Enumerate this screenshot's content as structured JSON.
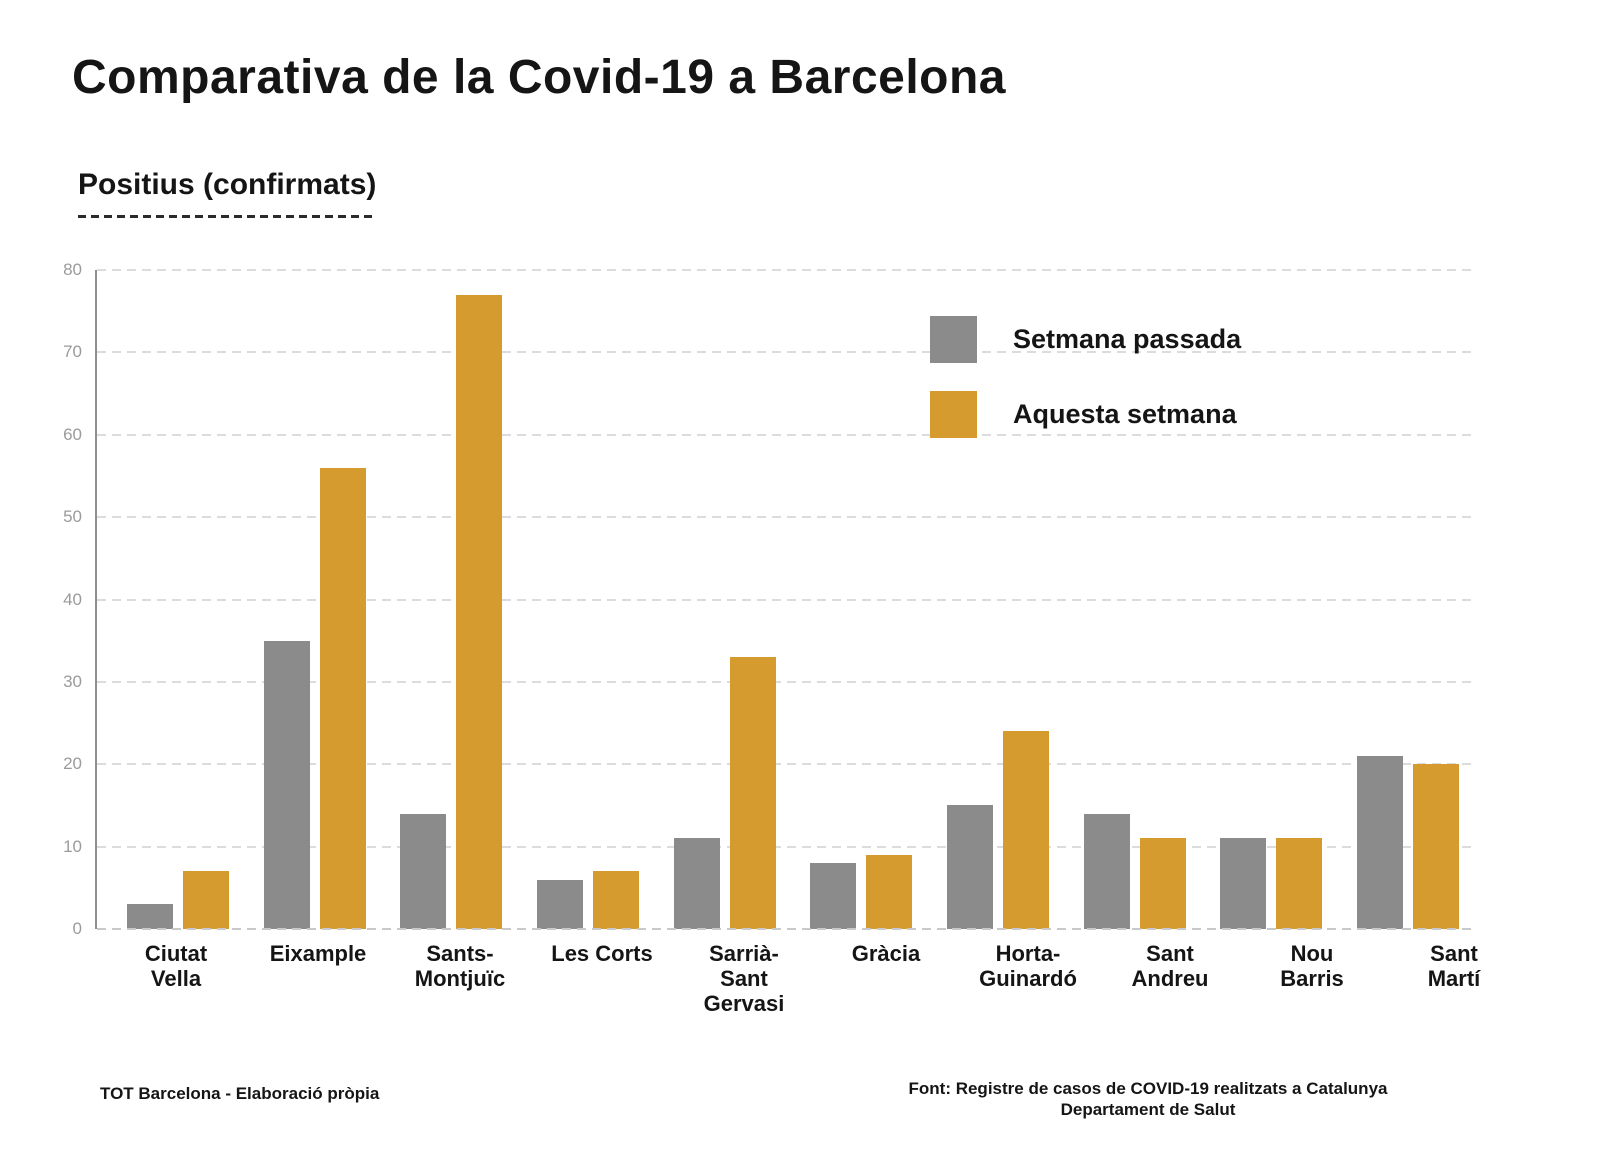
{
  "header": {
    "title": "Comparativa de la Covid-19 a Barcelona",
    "subtitle": "Positius (confirmats)"
  },
  "legend": {
    "series": [
      {
        "label": "Setmana passada",
        "color": "#8b8b8b"
      },
      {
        "label": "Aquesta setmana",
        "color": "#d69b2e"
      }
    ]
  },
  "chart_data": {
    "type": "bar",
    "title": "Comparativa de la Covid-19 a Barcelona",
    "subtitle": "Positius (confirmats)",
    "categories": [
      "Ciutat Vella",
      "Eixample",
      "Sants-Montjuïc",
      "Les Corts",
      "Sarrià-Sant Gervasi",
      "Gràcia",
      "Horta-Guinardó",
      "Sant Andreu",
      "Nou Barris",
      "Sant Martí"
    ],
    "category_labels": [
      "Ciutat\nVella",
      "Eixample",
      "Sants-\nMontjuïc",
      "Les Corts",
      "Sarrià-\nSant\nGervasi",
      "Gràcia",
      "Horta-\nGuinardó",
      "Sant\nAndreu",
      "Nou\nBarris",
      "Sant\nMartí"
    ],
    "series": [
      {
        "name": "Setmana passada",
        "color": "#8b8b8b",
        "values": [
          3,
          35,
          14,
          6,
          11,
          8,
          15,
          14,
          11,
          21
        ]
      },
      {
        "name": "Aquesta setmana",
        "color": "#d69b2e",
        "values": [
          7,
          56,
          77,
          7,
          33,
          9,
          24,
          11,
          11,
          20
        ]
      }
    ],
    "xlabel": "",
    "ylabel": "",
    "ylim": [
      0,
      80
    ],
    "yticks": [
      0,
      10,
      20,
      30,
      40,
      50,
      60,
      70,
      80
    ],
    "grid": "horizontal-dashed",
    "legend_position": "inside-upper-middle"
  },
  "colors": {
    "gray_series": "#8b8b8b",
    "orange_series": "#d69b2e",
    "axis_text": "#9b9b9b",
    "gridline": "#dcdcdc",
    "text": "#151515",
    "background": "#ffffff"
  },
  "footer": {
    "left": "TOT Barcelona - Elaboració pròpia",
    "right_line1": "Font: Registre de casos de COVID-19 realitzats a Catalunya",
    "right_line2": "Departament de Salut"
  }
}
